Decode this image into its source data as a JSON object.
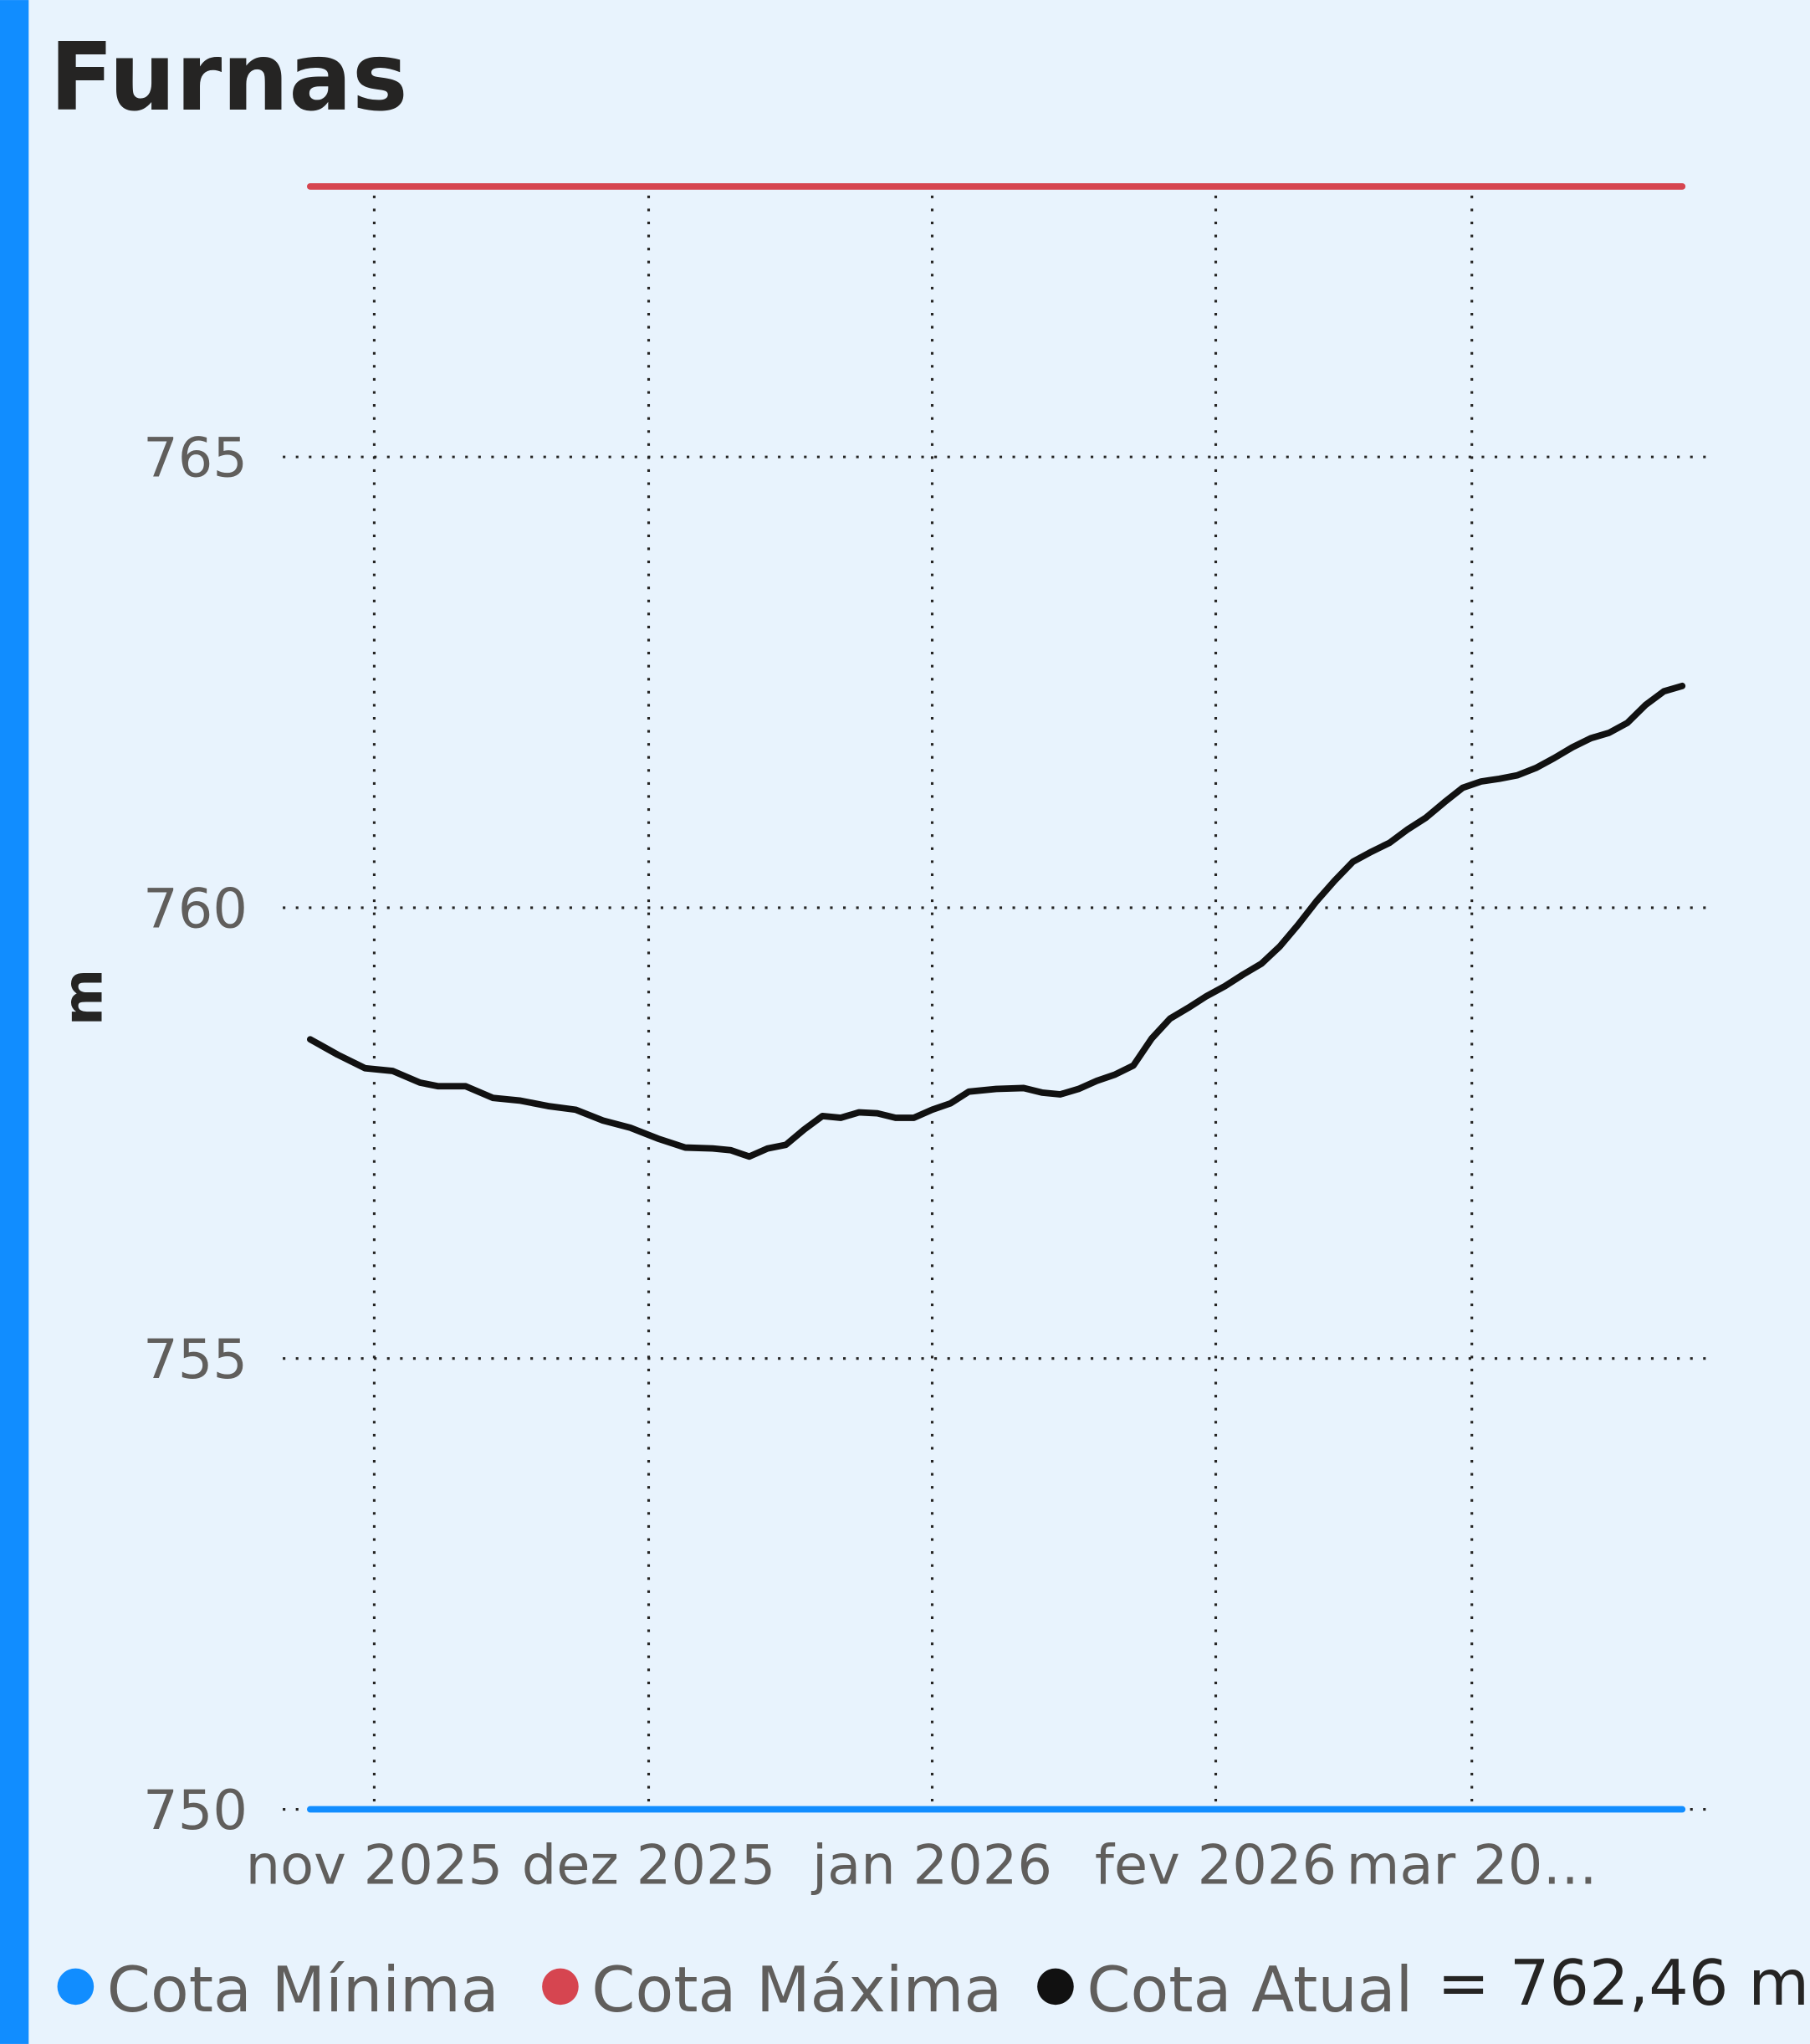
{
  "chart_data": {
    "type": "line",
    "title": "Furnas",
    "y_label": "m",
    "x": [
      0,
      3,
      6,
      9,
      12,
      14,
      17,
      20,
      23,
      26,
      29,
      32,
      35,
      38,
      41,
      44,
      46,
      48,
      50,
      52,
      54,
      56,
      58,
      60,
      62,
      64,
      66,
      68,
      70,
      72,
      75,
      78,
      80,
      82,
      84,
      86,
      88,
      90,
      92,
      94,
      96,
      98,
      100,
      102,
      104,
      106,
      108,
      110,
      112,
      114,
      116,
      118,
      120,
      122,
      124,
      126,
      128,
      130,
      132,
      134,
      136,
      138,
      140,
      142,
      144,
      146,
      148,
      150
    ],
    "series": [
      {
        "name": "Cota Mínima",
        "color": "#118dff",
        "x": [
          0,
          150
        ],
        "values": [
          750,
          750
        ]
      },
      {
        "name": "Cota Máxima",
        "color": "#d64550",
        "x": [
          0,
          150
        ],
        "values": [
          768,
          768
        ]
      },
      {
        "name": "Cota Atual",
        "color": "#111111",
        "values": [
          758.54,
          758.37,
          758.22,
          758.19,
          758.06,
          758.02,
          758.02,
          757.89,
          757.86,
          757.8,
          757.76,
          757.64,
          757.56,
          757.44,
          757.34,
          757.33,
          757.31,
          757.24,
          757.33,
          757.37,
          757.54,
          757.69,
          757.67,
          757.73,
          757.72,
          757.67,
          757.67,
          757.76,
          757.83,
          757.96,
          757.99,
          758.0,
          757.95,
          757.93,
          757.99,
          758.08,
          758.15,
          758.25,
          758.55,
          758.77,
          758.89,
          759.02,
          759.13,
          759.26,
          759.38,
          759.57,
          759.81,
          760.07,
          760.3,
          760.51,
          760.62,
          760.72,
          760.87,
          761.0,
          761.17,
          761.33,
          761.4,
          761.43,
          761.47,
          761.55,
          761.66,
          761.78,
          761.88,
          761.94,
          762.05,
          762.25,
          762.4,
          762.46
        ]
      }
    ],
    "current": {
      "value": 762.46,
      "label": "= 762,46 m"
    },
    "xlim": [
      -3,
      153
    ],
    "xticks": [
      {
        "value": 7,
        "label": "nov 2025"
      },
      {
        "value": 37,
        "label": "dez 2025"
      },
      {
        "value": 68,
        "label": "jan 2026"
      },
      {
        "value": 99,
        "label": "fev 2026"
      },
      {
        "value": 127,
        "label": "mar 20…"
      }
    ],
    "ylim": [
      750,
      768
    ],
    "yticks": [
      750,
      755,
      760,
      765
    ],
    "grid": true,
    "legend": "bottom"
  }
}
